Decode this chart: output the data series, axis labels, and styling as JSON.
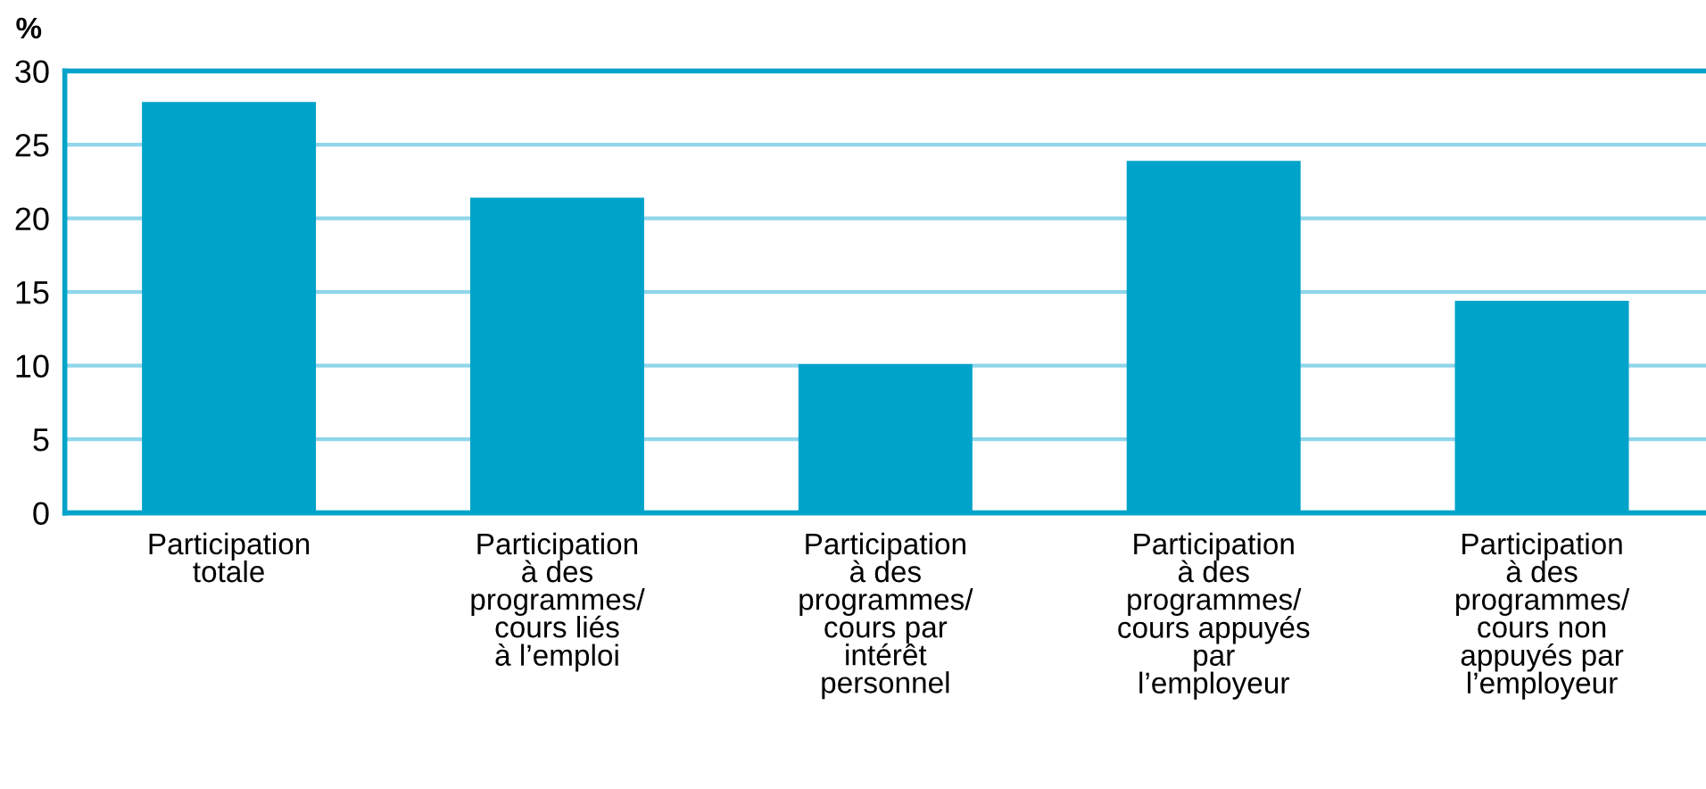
{
  "chart_data": {
    "type": "bar",
    "ylabel": "%",
    "categories": [
      "Participation\ntotale",
      "Participation\nà des\nprogrammes/\ncours liés\nà l’emploi",
      "Participation\nà des\nprogrammes/\ncours par\nintérêt\npersonnel",
      "Participation\nà des\nprogrammes/\ncours appuyés\npar\nl’employeur",
      "Participation\nà des\nprogrammes/\ncours non\nappuyés par\nl’employeur"
    ],
    "values": [
      27.9,
      21.4,
      10.1,
      23.9,
      14.4
    ],
    "color": "#00a3c9",
    "ylim": [
      0,
      30
    ],
    "yticks": [
      0,
      5,
      10,
      15,
      20,
      25,
      30
    ],
    "grid": "y"
  }
}
